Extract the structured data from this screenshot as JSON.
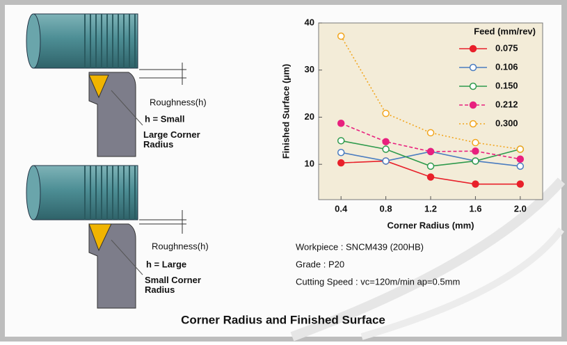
{
  "chart_data": {
    "type": "line",
    "ylabel": "Finished Surface (μm)",
    "xlabel": "Corner Radius   (mm)",
    "legend_title": "Feed (mm/rev)",
    "x": [
      0.4,
      0.8,
      1.2,
      1.6,
      2.0
    ],
    "series": [
      {
        "name": "0.075",
        "color": "#e8202a",
        "filled": true,
        "line_style": "solid",
        "values": [
          10.3,
          10.7,
          7.3,
          5.8,
          5.8
        ]
      },
      {
        "name": "0.106",
        "color": "#4a7cc0",
        "filled": false,
        "line_style": "solid",
        "values": [
          12.5,
          10.7,
          12.7,
          10.7,
          9.6
        ]
      },
      {
        "name": "0.150",
        "color": "#2e9a4c",
        "filled": false,
        "line_style": "solid",
        "values": [
          15.0,
          13.2,
          9.6,
          10.7,
          13.2
        ]
      },
      {
        "name": "0.212",
        "color": "#e8207e",
        "filled": true,
        "line_style": "dashed",
        "values": [
          18.7,
          14.8,
          12.7,
          12.8,
          11.1
        ]
      },
      {
        "name": "0.300",
        "color": "#f2a51c",
        "filled": false,
        "line_style": "dotted",
        "values": [
          37.2,
          20.8,
          16.7,
          14.6,
          13.2
        ]
      }
    ],
    "xlim": [
      0.2,
      2.2
    ],
    "ylim": [
      2.5,
      40
    ],
    "xticks": [
      0.4,
      0.8,
      1.2,
      1.6,
      {
        "value": 2,
        "label": "2.0"
      }
    ],
    "yticks": [
      10,
      20,
      30,
      40
    ],
    "legend": "upper right"
  },
  "illustrations": [
    {
      "roughness": "Roughness(h)",
      "h": "h = Small",
      "radius": "Large Corner Radius"
    },
    {
      "roughness": "Roughness(h)",
      "h": "h = Large",
      "radius": "Small Corner Radius"
    }
  ],
  "conditions": [
    "Workpiece : SNCM439  (200HB)",
    "Grade : P20",
    "Cutting Speed : vc=120m/min  ap=0.5mm"
  ],
  "caption": "Corner Radius and Finished Surface"
}
